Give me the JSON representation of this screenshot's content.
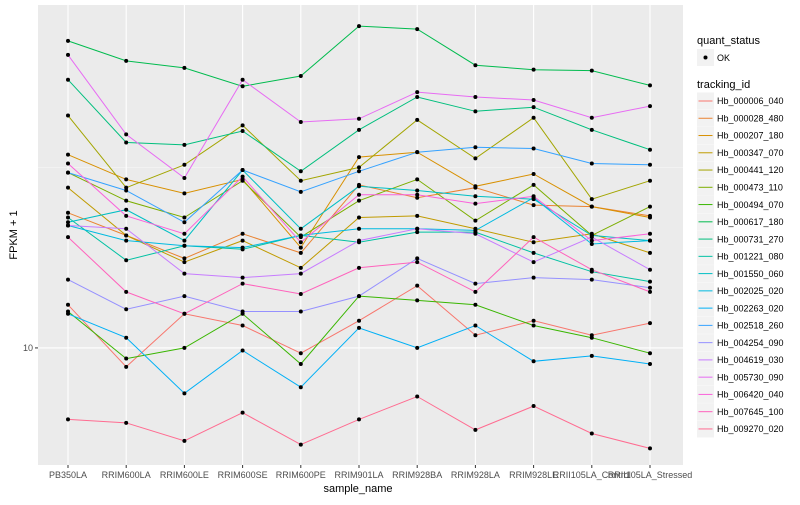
{
  "chart_data": {
    "type": "line",
    "xlabel": "sample_name",
    "ylabel": "FPKM + 1",
    "y_scale": "log10",
    "ylim": [
      6.38,
      37.3
    ],
    "y_ticks": [
      10
    ],
    "y_tick_labels": [
      "10"
    ],
    "grid": true,
    "legend_placement": "right",
    "categories": [
      "PB350LA",
      "RRIM600LA",
      "RRIM600LE",
      "RRIM600SE",
      "RRIM600PE",
      "RRIM901LA",
      "RRIM928BA",
      "RRIM928LA",
      "RRIM928LE",
      "RRII105LA_Control",
      "RRII105LA_Stressed"
    ],
    "shape_legend": {
      "title": "quant_status",
      "entries": [
        "OK"
      ]
    },
    "color_legend_title": "tracking_id",
    "series": [
      {
        "name": "Hb_000006_040",
        "color": "#F8766D",
        "values": [
          11.8,
          9.3,
          11.4,
          10.9,
          9.8,
          11.1,
          12.7,
          10.5,
          11.1,
          10.5,
          11.0
        ]
      },
      {
        "name": "Hb_000028_480",
        "color": "#EA8331",
        "values": [
          16.8,
          15.4,
          14.1,
          15.5,
          14.4,
          18.7,
          17.8,
          18.5,
          17.3,
          17.2,
          16.6
        ]
      },
      {
        "name": "Hb_000207_180",
        "color": "#D89000",
        "values": [
          21.0,
          19.1,
          18.1,
          19.1,
          14.7,
          20.8,
          21.2,
          18.6,
          19.5,
          17.2,
          16.5
        ]
      },
      {
        "name": "Hb_000347_070",
        "color": "#C09B00",
        "values": [
          18.5,
          15.4,
          13.9,
          15.1,
          13.6,
          16.5,
          16.6,
          15.8,
          15.0,
          15.5,
          14.4
        ]
      },
      {
        "name": "Hb_000441_120",
        "color": "#A3A500",
        "values": [
          24.4,
          18.5,
          20.2,
          23.5,
          19.0,
          20.0,
          24.0,
          20.7,
          24.2,
          17.7,
          19.0
        ]
      },
      {
        "name": "Hb_000473_110",
        "color": "#7CAE00",
        "values": [
          19.6,
          17.6,
          16.5,
          19.0,
          15.3,
          17.6,
          19.1,
          16.3,
          18.7,
          15.4,
          17.2
        ]
      },
      {
        "name": "Hb_000494_070",
        "color": "#39B600",
        "values": [
          11.5,
          9.6,
          10.0,
          11.4,
          9.4,
          12.2,
          12.0,
          11.8,
          10.9,
          10.4,
          9.8
        ]
      },
      {
        "name": "Hb_000617_180",
        "color": "#00BB4E",
        "values": [
          32.5,
          30.1,
          29.3,
          27.3,
          28.4,
          34.4,
          34.0,
          29.6,
          29.1,
          29.0,
          27.4
        ]
      },
      {
        "name": "Hb_000731_270",
        "color": "#00BF7D",
        "values": [
          28.0,
          22.0,
          21.8,
          23.0,
          19.7,
          23.1,
          26.2,
          24.8,
          25.2,
          23.1,
          21.4
        ]
      },
      {
        "name": "Hb_001221_080",
        "color": "#00C1A3",
        "values": [
          16.5,
          14.0,
          14.8,
          14.6,
          15.4,
          15.0,
          15.6,
          15.6,
          14.4,
          13.4,
          12.9
        ]
      },
      {
        "name": "Hb_001550_060",
        "color": "#00BFC4",
        "values": [
          16.2,
          17.0,
          15.1,
          19.8,
          15.8,
          18.6,
          18.3,
          17.9,
          17.7,
          15.4,
          15.1
        ]
      },
      {
        "name": "Hb_002025_020",
        "color": "#00BAE0",
        "values": [
          16.0,
          15.1,
          14.8,
          14.7,
          15.4,
          15.8,
          15.8,
          15.7,
          17.8,
          14.9,
          15.1
        ]
      },
      {
        "name": "Hb_002263_020",
        "color": "#00B0F6",
        "values": [
          11.4,
          10.4,
          8.4,
          9.9,
          8.6,
          10.8,
          10.0,
          10.9,
          9.5,
          9.7,
          9.4
        ]
      },
      {
        "name": "Hb_002518_260",
        "color": "#35A2FF",
        "values": [
          19.6,
          18.3,
          16.2,
          19.8,
          18.2,
          19.7,
          21.2,
          21.6,
          21.5,
          20.3,
          20.2
        ]
      },
      {
        "name": "Hb_004254_090",
        "color": "#9590FF",
        "values": [
          13.0,
          11.6,
          12.2,
          11.5,
          11.5,
          12.2,
          14.1,
          12.8,
          13.1,
          13.0,
          12.6
        ]
      },
      {
        "name": "Hb_004619_030",
        "color": "#C77CFF",
        "values": [
          16.0,
          15.8,
          13.3,
          13.1,
          13.3,
          15.1,
          15.8,
          15.5,
          13.9,
          15.3,
          13.5
        ]
      },
      {
        "name": "Hb_005730_090",
        "color": "#E76BF3",
        "values": [
          30.8,
          22.7,
          19.2,
          28.0,
          23.8,
          24.1,
          26.7,
          26.2,
          25.9,
          24.2,
          25.3
        ]
      },
      {
        "name": "Hb_006420_040",
        "color": "#FA62DB",
        "values": [
          20.3,
          16.6,
          15.5,
          19.3,
          15.0,
          18.0,
          18.0,
          17.4,
          17.9,
          15.1,
          15.5
        ]
      },
      {
        "name": "Hb_007645_100",
        "color": "#FF62BC",
        "values": [
          15.3,
          12.4,
          11.4,
          12.8,
          12.3,
          13.6,
          13.9,
          12.4,
          15.3,
          13.5,
          12.4
        ]
      },
      {
        "name": "Hb_009270_020",
        "color": "#FF6C91",
        "values": [
          7.6,
          7.5,
          7.0,
          7.8,
          6.9,
          7.6,
          8.3,
          7.3,
          8.0,
          7.2,
          6.8
        ]
      }
    ]
  }
}
